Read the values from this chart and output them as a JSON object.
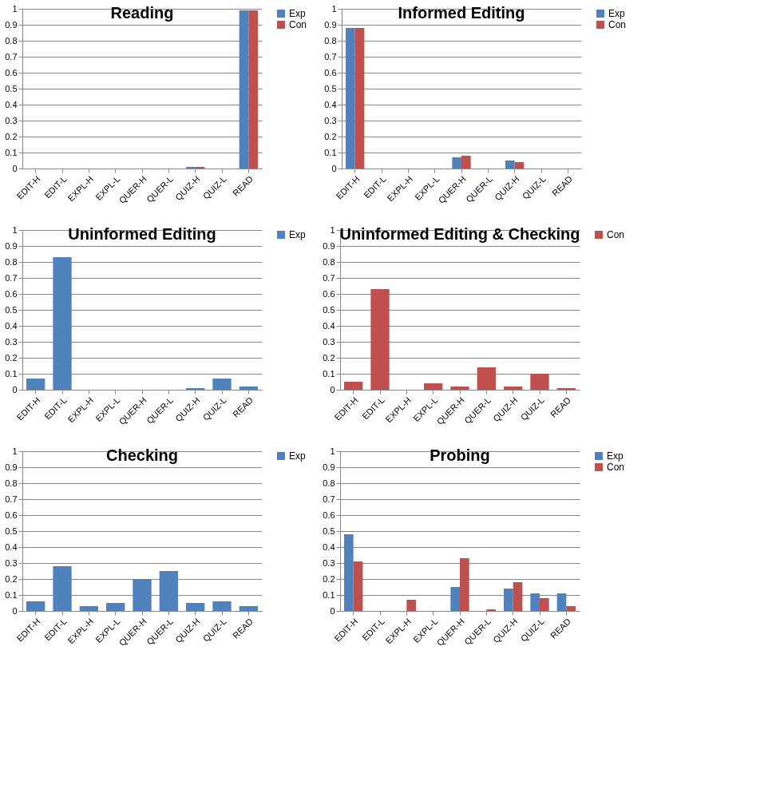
{
  "chart_data": [
    {
      "type": "bar",
      "title": "Reading",
      "categories": [
        "EDIT-H",
        "EDIT-L",
        "EXPL-H",
        "EXPL-L",
        "QUER-H",
        "QUER-L",
        "QUIZ-H",
        "QUIZ-L",
        "READ"
      ],
      "series": [
        {
          "name": "Exp",
          "color": "#4f81bd",
          "values": [
            0,
            0,
            0,
            0,
            0,
            0,
            0.01,
            0,
            0.99
          ]
        },
        {
          "name": "Con",
          "color": "#c0504d",
          "values": [
            0,
            0,
            0,
            0,
            0,
            0,
            0.01,
            0,
            0.99
          ]
        }
      ],
      "ylim": [
        0,
        1
      ],
      "yticks": [
        0,
        0.1,
        0.2,
        0.3,
        0.4,
        0.5,
        0.6,
        0.7,
        0.8,
        0.9,
        1
      ],
      "grid": "y",
      "legend": "right"
    },
    {
      "type": "bar",
      "title": "Informed Editing",
      "categories": [
        "EDIT-H",
        "EDIT-L",
        "EXPL-H",
        "EXPL-L",
        "QUER-H",
        "QUER-L",
        "QUIZ-H",
        "QUIZ-L",
        "READ"
      ],
      "series": [
        {
          "name": "Exp",
          "color": "#4f81bd",
          "values": [
            0.88,
            0,
            0,
            0,
            0.07,
            0,
            0.05,
            0,
            0
          ]
        },
        {
          "name": "Con",
          "color": "#c0504d",
          "values": [
            0.88,
            0,
            0,
            0,
            0.08,
            0,
            0.04,
            0,
            0
          ]
        }
      ],
      "ylim": [
        0,
        1
      ],
      "yticks": [
        0,
        0.1,
        0.2,
        0.3,
        0.4,
        0.5,
        0.6,
        0.7,
        0.8,
        0.9,
        1
      ],
      "grid": "y",
      "legend": "right"
    },
    {
      "type": "bar",
      "title": "Uninformed Editing",
      "categories": [
        "EDIT-H",
        "EDIT-L",
        "EXPL-H",
        "EXPL-L",
        "QUER-H",
        "QUER-L",
        "QUIZ-H",
        "QUIZ-L",
        "READ"
      ],
      "series": [
        {
          "name": "Exp",
          "color": "#4f81bd",
          "values": [
            0.07,
            0.83,
            0,
            0,
            0,
            0,
            0.01,
            0.07,
            0.02
          ]
        }
      ],
      "ylim": [
        0,
        1
      ],
      "yticks": [
        0,
        0.1,
        0.2,
        0.3,
        0.4,
        0.5,
        0.6,
        0.7,
        0.8,
        0.9,
        1
      ],
      "grid": "y",
      "legend": "right"
    },
    {
      "type": "bar",
      "title": "Uninformed Editing & Checking",
      "categories": [
        "EDIT-H",
        "EDIT-L",
        "EXPL-H",
        "EXPL-L",
        "QUER-H",
        "QUER-L",
        "QUIZ-H",
        "QUIZ-L",
        "READ"
      ],
      "series": [
        {
          "name": "Con",
          "color": "#c0504d",
          "values": [
            0.05,
            0.63,
            0,
            0.04,
            0.02,
            0.14,
            0.02,
            0.1,
            0.01
          ]
        }
      ],
      "ylim": [
        0,
        1
      ],
      "yticks": [
        0,
        0.1,
        0.2,
        0.3,
        0.4,
        0.5,
        0.6,
        0.7,
        0.8,
        0.9,
        1
      ],
      "grid": "y",
      "legend": "right"
    },
    {
      "type": "bar",
      "title": "Checking",
      "categories": [
        "EDIT-H",
        "EDIT-L",
        "EXPL-H",
        "EXPL-L",
        "QUER-H",
        "QUER-L",
        "QUIZ-H",
        "QUIZ-L",
        "READ"
      ],
      "series": [
        {
          "name": "Exp",
          "color": "#4f81bd",
          "values": [
            0.06,
            0.28,
            0.03,
            0.05,
            0.2,
            0.25,
            0.05,
            0.06,
            0.03
          ]
        }
      ],
      "ylim": [
        0,
        1
      ],
      "yticks": [
        0,
        0.1,
        0.2,
        0.3,
        0.4,
        0.5,
        0.6,
        0.7,
        0.8,
        0.9,
        1
      ],
      "grid": "y",
      "legend": "right"
    },
    {
      "type": "bar",
      "title": "Probing",
      "categories": [
        "EDIT-H",
        "EDIT-L",
        "EXPL-H",
        "EXPL-L",
        "QUER-H",
        "QUER-L",
        "QUIZ-H",
        "QUIZ-L",
        "READ"
      ],
      "series": [
        {
          "name": "Exp",
          "color": "#4f81bd",
          "values": [
            0.48,
            0,
            0,
            0,
            0.15,
            0,
            0.14,
            0.11,
            0.11
          ]
        },
        {
          "name": "Con",
          "color": "#c0504d",
          "values": [
            0.31,
            0,
            0.07,
            0,
            0.33,
            0.01,
            0.18,
            0.08,
            0.03
          ]
        }
      ],
      "ylim": [
        0,
        1
      ],
      "yticks": [
        0,
        0.1,
        0.2,
        0.3,
        0.4,
        0.5,
        0.6,
        0.7,
        0.8,
        0.9,
        1
      ],
      "grid": "y",
      "legend": "right"
    }
  ]
}
